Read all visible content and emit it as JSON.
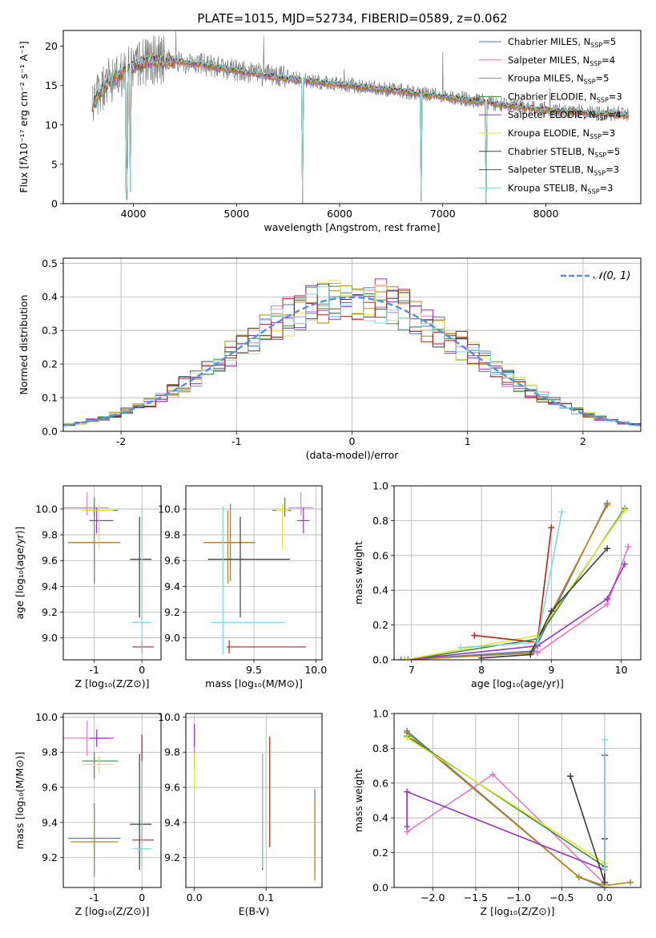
{
  "title": "PLATE=1015, MJD=52734, FIBERID=0589, z=0.062",
  "model_colors": [
    "#4e79c6",
    "#e377c2",
    "#b8860b",
    "#3a8f3a",
    "#9b30c0",
    "#e6e632",
    "#3b3b3b",
    "#b22222",
    "#80d8e0"
  ],
  "chart_data": [
    {
      "id": "spectrum",
      "type": "line",
      "xlabel": "wavelength [Angstrom, rest frame]",
      "ylabel": "Flux [fλ10⁻¹⁷ erg cm⁻² s⁻¹ A⁻¹]",
      "xlim": [
        3320,
        8920
      ],
      "ylim": [
        0,
        22
      ],
      "xticks": [
        4000,
        5000,
        6000,
        7000,
        8000
      ],
      "yticks": [
        0,
        5,
        10,
        15,
        20
      ],
      "legend_position": "top-right",
      "data_color": "#808080",
      "continuum": {
        "x": [
          3600,
          3700,
          3800,
          3900,
          4000,
          4100,
          4200,
          4300,
          4500,
          4700,
          5000,
          5300,
          5600,
          6000,
          6400,
          6800,
          7200,
          7600,
          8000,
          8400,
          8800
        ],
        "y": [
          12.5,
          14.5,
          16.0,
          16.5,
          17.5,
          18.0,
          18.3,
          18.2,
          18.0,
          17.6,
          17.0,
          16.3,
          15.8,
          15.2,
          14.6,
          14.0,
          13.3,
          12.6,
          12.0,
          11.6,
          11.3
        ]
      },
      "dips": [
        {
          "x": 3933,
          "y": 0.5
        },
        {
          "x": 3968,
          "y": 1.5
        },
        {
          "x": 5640,
          "y": 0
        },
        {
          "x": 6790,
          "y": 0.3
        },
        {
          "x": 7420,
          "y": 0
        }
      ],
      "legend": [
        {
          "label": "Chabrier MILES, N",
          "sub": "SSP",
          "suffix": "=5"
        },
        {
          "label": "Salpeter MILES, N",
          "sub": "SSP",
          "suffix": "=4"
        },
        {
          "label": "Kroupa MILES, N",
          "sub": "SSP",
          "suffix": "=5"
        },
        {
          "label": "Chabrier ELODIE, N",
          "sub": "SSP",
          "suffix": "=3"
        },
        {
          "label": "Salpeter ELODIE, N",
          "sub": "SSP",
          "suffix": "=4"
        },
        {
          "label": "Kroupa ELODIE, N",
          "sub": "SSP",
          "suffix": "=3"
        },
        {
          "label": "Chabrier STELIB, N",
          "sub": "SSP",
          "suffix": "=5"
        },
        {
          "label": "Salpeter STELIB, N",
          "sub": "SSP",
          "suffix": "=3"
        },
        {
          "label": "Kroupa STELIB, N",
          "sub": "SSP",
          "suffix": "=3"
        }
      ]
    },
    {
      "id": "residuals",
      "type": "histogram",
      "xlabel": "(data-model)/error",
      "ylabel": "Normed distribution",
      "xlim": [
        -2.5,
        2.5
      ],
      "ylim": [
        0,
        0.515
      ],
      "xticks": [
        -2,
        -1,
        0,
        1,
        2
      ],
      "yticks": [
        0.0,
        0.1,
        0.2,
        0.3,
        0.4,
        0.5
      ],
      "grid": true,
      "bin_width": 0.1,
      "reference_curve": {
        "label": "𝒩(0, 1)",
        "color": "#5a8fd6",
        "style": "dashed"
      },
      "legend_position": "top-right",
      "series": [
        {
          "seed": 11,
          "color_index": 0
        },
        {
          "seed": 23,
          "color_index": 1
        },
        {
          "seed": 37,
          "color_index": 2
        },
        {
          "seed": 41,
          "color_index": 3
        },
        {
          "seed": 53,
          "color_index": 4
        },
        {
          "seed": 67,
          "color_index": 5
        },
        {
          "seed": 79,
          "color_index": 6
        },
        {
          "seed": 83,
          "color_index": 7
        },
        {
          "seed": 97,
          "color_index": 8
        }
      ]
    },
    {
      "id": "age-vs-z",
      "type": "scatter",
      "xlabel": "Z [log₁₀(Z/Z⊙)]",
      "ylabel": "age  [log₁₀(age/yr)]",
      "xlim": [
        -1.65,
        0.4
      ],
      "ylim": [
        8.83,
        10.18
      ],
      "xticks": [
        -1,
        0
      ],
      "yticks": [
        9.0,
        9.2,
        9.4,
        9.6,
        9.8,
        10.0
      ],
      "grid": true,
      "points": [
        {
          "x": -1.0,
          "y": 9.74,
          "xerr": [
            0.55,
            0.55
          ],
          "yerr": [
            0.3,
            0.3
          ],
          "color_index": 0
        },
        {
          "x": -1.15,
          "y": 10.01,
          "xerr": [
            0.5,
            0.45
          ],
          "yerr": [
            0.06,
            0.12
          ],
          "color_index": 1
        },
        {
          "x": -1.0,
          "y": 9.74,
          "xerr": [
            0.5,
            0.5
          ],
          "yerr": [
            0.32,
            0.25
          ],
          "color_index": 2
        },
        {
          "x": -1.0,
          "y": 9.99,
          "xerr": [
            0.25,
            0.5
          ],
          "yerr": [
            0.05,
            0.1
          ],
          "color_index": 3
        },
        {
          "x": -0.95,
          "y": 9.91,
          "xerr": [
            0.15,
            0.35
          ],
          "yerr": [
            0.1,
            0.1
          ],
          "color_index": 4
        },
        {
          "x": -0.9,
          "y": 9.99,
          "xerr": [
            0.35,
            0.3
          ],
          "yerr": [
            0.3,
            0.05
          ],
          "color_index": 5
        },
        {
          "x": -0.05,
          "y": 9.61,
          "xerr": [
            0.2,
            0.25
          ],
          "yerr": [
            0.45,
            0.33
          ],
          "color_index": 6
        },
        {
          "x": 0.0,
          "y": 8.93,
          "xerr": [
            0.2,
            0.25
          ],
          "yerr": [
            0.05,
            0.05
          ],
          "color_index": 7
        },
        {
          "x": 0.0,
          "y": 9.12,
          "xerr": [
            0.2,
            0.2
          ],
          "yerr": [
            0.25,
            0.9
          ],
          "color_index": 8
        }
      ]
    },
    {
      "id": "age-vs-mass",
      "type": "scatter",
      "xlabel": "mass [log₁₀(M/M⊙)]",
      "ylabel": "",
      "xlim": [
        8.95,
        10.05
      ],
      "ylim": [
        8.83,
        10.18
      ],
      "xticks": [
        9.5,
        10.0
      ],
      "xticklabels": [
        "9.5",
        "10.0"
      ],
      "yticks": [
        9.0,
        9.2,
        9.4,
        9.6,
        9.8,
        10.0
      ],
      "grid": true,
      "points": [
        {
          "x": 9.31,
          "y": 9.74,
          "xerr": [
            0.2,
            0.2
          ],
          "yerr": [
            0.3,
            0.3
          ],
          "color_index": 0
        },
        {
          "x": 9.88,
          "y": 10.01,
          "xerr": [
            0.1,
            0.1
          ],
          "yerr": [
            0.06,
            0.12
          ],
          "color_index": 1
        },
        {
          "x": 9.29,
          "y": 9.74,
          "xerr": [
            0.2,
            0.2
          ],
          "yerr": [
            0.32,
            0.25
          ],
          "color_index": 2
        },
        {
          "x": 9.75,
          "y": 9.99,
          "xerr": [
            0.1,
            0.05
          ],
          "yerr": [
            0.05,
            0.1
          ],
          "color_index": 3
        },
        {
          "x": 9.9,
          "y": 9.91,
          "xerr": [
            0.05,
            0.05
          ],
          "yerr": [
            0.1,
            0.1
          ],
          "color_index": 4
        },
        {
          "x": 9.73,
          "y": 9.99,
          "xerr": [
            0.05,
            0.05
          ],
          "yerr": [
            0.3,
            0.05
          ],
          "color_index": 5
        },
        {
          "x": 9.39,
          "y": 9.61,
          "xerr": [
            0.26,
            0.4
          ],
          "yerr": [
            0.45,
            0.33
          ],
          "color_index": 6
        },
        {
          "x": 9.3,
          "y": 8.93,
          "xerr": [
            0.02,
            0.62
          ],
          "yerr": [
            0.05,
            0.05
          ],
          "color_index": 7
        },
        {
          "x": 9.25,
          "y": 9.12,
          "xerr": [
            0.1,
            0.5
          ],
          "yerr": [
            0.25,
            0.9
          ],
          "color_index": 8
        }
      ]
    },
    {
      "id": "weight-vs-age",
      "type": "line",
      "xlabel": "age  [log₁₀(age/yr)]",
      "ylabel": "mass weight",
      "xlim": [
        6.75,
        10.28
      ],
      "ylim": [
        0,
        1.0
      ],
      "xticks": [
        7,
        8,
        9,
        10
      ],
      "yticks": [
        0.0,
        0.2,
        0.4,
        0.6,
        0.8,
        1.0
      ],
      "grid": true,
      "series": [
        {
          "color_index": 0,
          "x": [
            6.85,
            8.75,
            9.8
          ],
          "y": [
            0.0,
            0.05,
            0.9
          ]
        },
        {
          "color_index": 1,
          "x": [
            6.9,
            8.8,
            9.8,
            10.1
          ],
          "y": [
            0.0,
            0.04,
            0.32,
            0.65
          ]
        },
        {
          "color_index": 2,
          "x": [
            6.9,
            8.7,
            9.8
          ],
          "y": [
            0.0,
            0.04,
            0.89
          ]
        },
        {
          "color_index": 3,
          "x": [
            6.95,
            8.8,
            10.05
          ],
          "y": [
            0.0,
            0.12,
            0.87
          ]
        },
        {
          "color_index": 4,
          "x": [
            6.9,
            8.8,
            9.8,
            10.05
          ],
          "y": [
            0.0,
            0.08,
            0.35,
            0.55
          ]
        },
        {
          "color_index": 5,
          "x": [
            6.9,
            8.8,
            10.05
          ],
          "y": [
            0.0,
            0.14,
            0.86
          ]
        },
        {
          "color_index": 6,
          "x": [
            8.0,
            8.7,
            9.0,
            9.8
          ],
          "y": [
            0.01,
            0.03,
            0.28,
            0.64
          ]
        },
        {
          "color_index": 7,
          "x": [
            7.9,
            8.8,
            9.0
          ],
          "y": [
            0.14,
            0.1,
            0.76
          ]
        },
        {
          "color_index": 8,
          "x": [
            7.7,
            8.8,
            9.15
          ],
          "y": [
            0.07,
            0.1,
            0.85
          ]
        }
      ]
    },
    {
      "id": "mass-vs-z",
      "type": "scatter",
      "xlabel": "Z [log₁₀(Z/Z⊙)]",
      "ylabel": "mass [log₁₀(M/M⊙)]",
      "xlim": [
        -1.65,
        0.4
      ],
      "ylim": [
        9.03,
        10.02
      ],
      "xticks": [
        -1,
        0
      ],
      "yticks": [
        9.2,
        9.4,
        9.6,
        9.8,
        10.0
      ],
      "grid": true,
      "points": [
        {
          "x": -1.0,
          "y": 9.31,
          "xerr": [
            0.55,
            0.55
          ],
          "yerr": [
            0.2,
            0.2
          ],
          "color_index": 0
        },
        {
          "x": -1.15,
          "y": 9.88,
          "xerr": [
            0.5,
            0.45
          ],
          "yerr": [
            0.1,
            0.1
          ],
          "color_index": 1
        },
        {
          "x": -1.0,
          "y": 9.29,
          "xerr": [
            0.5,
            0.5
          ],
          "yerr": [
            0.2,
            0.2
          ],
          "color_index": 2
        },
        {
          "x": -1.0,
          "y": 9.75,
          "xerr": [
            0.25,
            0.5
          ],
          "yerr": [
            0.1,
            0.05
          ],
          "color_index": 3
        },
        {
          "x": -0.95,
          "y": 9.88,
          "xerr": [
            0.15,
            0.35
          ],
          "yerr": [
            0.05,
            0.05
          ],
          "color_index": 4
        },
        {
          "x": -0.9,
          "y": 9.73,
          "xerr": [
            0.35,
            0.3
          ],
          "yerr": [
            0.05,
            0.05
          ],
          "color_index": 5
        },
        {
          "x": -0.05,
          "y": 9.39,
          "xerr": [
            0.2,
            0.25
          ],
          "yerr": [
            0.26,
            0.4
          ],
          "color_index": 6
        },
        {
          "x": 0.0,
          "y": 9.3,
          "xerr": [
            0.2,
            0.25
          ],
          "yerr": [
            0.02,
            0.6
          ],
          "color_index": 7
        },
        {
          "x": 0.0,
          "y": 9.25,
          "xerr": [
            0.2,
            0.2
          ],
          "yerr": [
            0.1,
            0.5
          ],
          "color_index": 8
        }
      ]
    },
    {
      "id": "mass-vs-ebv",
      "type": "scatter",
      "xlabel": "E(B-V)",
      "ylabel": "",
      "xlim": [
        -0.012,
        0.178
      ],
      "ylim": [
        9.03,
        10.02
      ],
      "xticks": [
        0.0,
        0.1
      ],
      "xticklabels": [
        "0.0",
        "0.1"
      ],
      "yticks": [
        9.2,
        9.4,
        9.6,
        9.8,
        10.0
      ],
      "grid": true,
      "points": [
        {
          "x": 0.168,
          "y": 9.31,
          "yerr": [
            0.2,
            0.28
          ],
          "color_index": 0
        },
        {
          "x": 0.0,
          "y": 9.88,
          "yerr": [
            0.1,
            0.08
          ],
          "color_index": 1
        },
        {
          "x": 0.168,
          "y": 9.29,
          "yerr": [
            0.22,
            0.24
          ],
          "color_index": 2
        },
        {
          "x": 0.0,
          "y": 9.75,
          "yerr": [
            0.05,
            0.05
          ],
          "color_index": 3
        },
        {
          "x": 0.0,
          "y": 9.88,
          "yerr": [
            0.05,
            0.08
          ],
          "color_index": 4
        },
        {
          "x": 0.0,
          "y": 9.73,
          "yerr": [
            0.15,
            0.07
          ],
          "color_index": 5
        },
        {
          "x": 0.095,
          "y": 9.5,
          "yerr": [
            0.37,
            0.29
          ],
          "color_index": 6
        },
        {
          "x": 0.105,
          "y": 9.6,
          "yerr": [
            0.34,
            0.29
          ],
          "color_index": 7
        },
        {
          "x": 0.095,
          "y": 9.5,
          "yerr": [
            0.36,
            0.29
          ],
          "color_index": 8
        }
      ]
    },
    {
      "id": "weight-vs-z",
      "type": "line",
      "xlabel": "Z [log₁₀(Z/Z⊙)]",
      "ylabel": "mass weight",
      "xlim": [
        -2.45,
        0.42
      ],
      "ylim": [
        0,
        1.0
      ],
      "xticks": [
        -2.0,
        -1.5,
        -1.0,
        -0.5,
        0.0
      ],
      "xticklabels": [
        "−2.0",
        "−1.5",
        "−1.0",
        "−0.5",
        "0.0"
      ],
      "yticks": [
        0.0,
        0.2,
        0.4,
        0.6,
        0.8,
        1.0
      ],
      "grid": true,
      "series": [
        {
          "color_index": 0,
          "x": [
            -2.3,
            -0.3,
            0.0
          ],
          "y": [
            0.9,
            0.06,
            0.0
          ]
        },
        {
          "color_index": 1,
          "x": [
            -2.3,
            -1.3,
            0.0
          ],
          "y": [
            0.32,
            0.65,
            0.02
          ]
        },
        {
          "color_index": 2,
          "x": [
            -2.3,
            -0.3,
            0.0,
            0.3
          ],
          "y": [
            0.89,
            0.06,
            0.01,
            0.03
          ]
        },
        {
          "color_index": 3,
          "x": [
            -2.3,
            0.0,
            0.0
          ],
          "y": [
            0.87,
            0.12,
            0.01
          ]
        },
        {
          "color_index": 4,
          "x": [
            -2.3,
            -2.3,
            0.0
          ],
          "y": [
            0.35,
            0.55,
            0.1
          ]
        },
        {
          "color_index": 5,
          "x": [
            -2.3,
            0.0,
            0.0
          ],
          "y": [
            0.86,
            0.14,
            0.01
          ]
        },
        {
          "color_index": 6,
          "x": [
            -0.4,
            0.0,
            0.0
          ],
          "y": [
            0.64,
            0.03,
            0.28
          ]
        },
        {
          "color_index": 7,
          "x": [
            0.0,
            0.0
          ],
          "y": [
            0.76,
            0.1
          ]
        },
        {
          "color_index": 8,
          "x": [
            0.0,
            0.0
          ],
          "y": [
            0.85,
            0.1
          ]
        }
      ]
    }
  ]
}
